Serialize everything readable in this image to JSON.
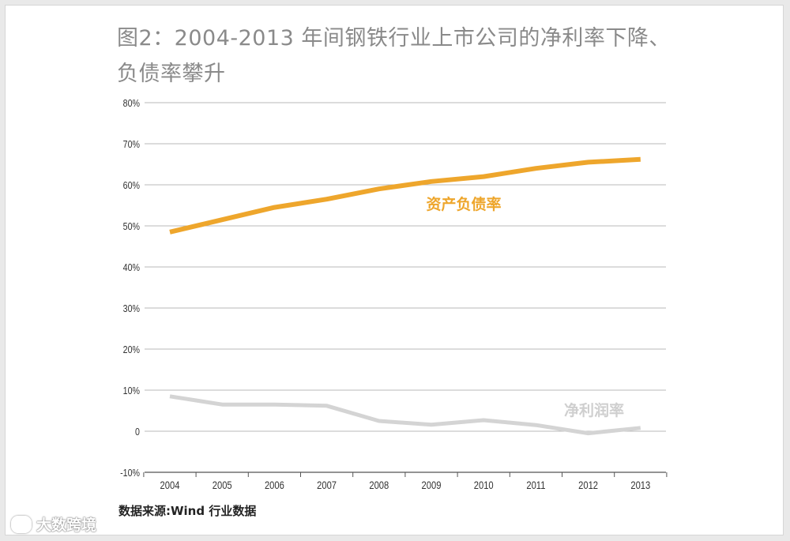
{
  "title": "图2：2004-2013 年间钢铁行业上市公司的净利率下降、负债率攀升",
  "source": "数据来源:Wind 行业数据",
  "watermark": "大数跨境",
  "colors": {
    "debt": "#eea62c",
    "margin": "#d4d4d4",
    "grid": "#b8b8b8",
    "text": "#333333"
  },
  "chart_data": {
    "type": "line",
    "title": "图2：2004-2013 年间钢铁行业上市公司的净利率下降、负债率攀升",
    "xlabel": "",
    "ylabel": "",
    "x": [
      "2004",
      "2005",
      "2006",
      "2007",
      "2008",
      "2009",
      "2010",
      "2011",
      "2012",
      "2013"
    ],
    "ylim": [
      -10,
      80
    ],
    "yticks": [
      -10,
      0,
      10,
      20,
      30,
      40,
      50,
      60,
      70,
      80
    ],
    "ytick_labels": [
      "-10%",
      "0",
      "10%",
      "20%",
      "30%",
      "40%",
      "50%",
      "60%",
      "70%",
      "80%"
    ],
    "grid": true,
    "series": [
      {
        "name": "资产负债率",
        "values": [
          48.5,
          51.5,
          54.5,
          56.5,
          59,
          60.8,
          62,
          64,
          65.5,
          66.2
        ]
      },
      {
        "name": "净利润率",
        "values": [
          8.5,
          6.5,
          6.5,
          6.2,
          2.5,
          1.6,
          2.7,
          1.5,
          -0.5,
          0.8
        ]
      }
    ]
  }
}
